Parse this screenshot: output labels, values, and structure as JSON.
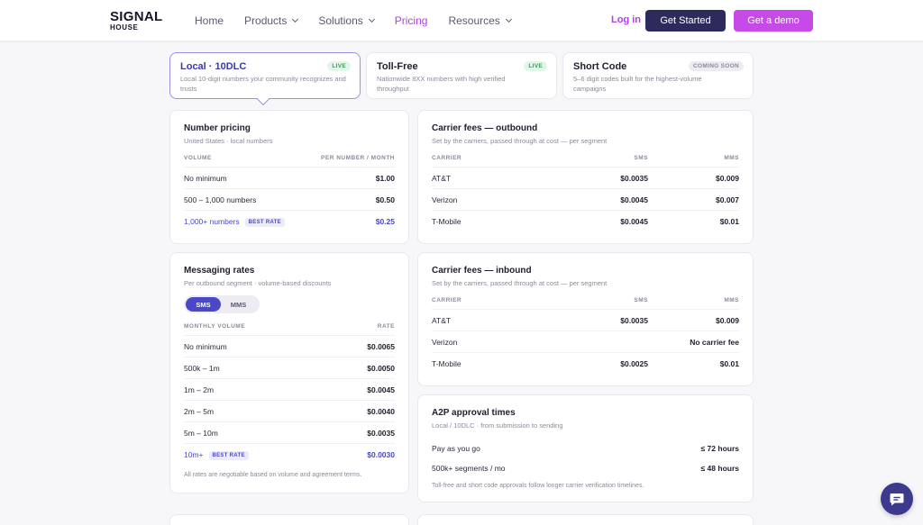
{
  "header": {
    "logo_line1": "SIGNAL",
    "logo_line2": "HOUSE",
    "nav": [
      {
        "label": "Home"
      },
      {
        "label": "Products"
      },
      {
        "label": "Solutions"
      },
      {
        "label": "Pricing"
      },
      {
        "label": "Resources"
      }
    ],
    "login": "Log in",
    "get_started": "Get Started",
    "get_demo": "Get a demo"
  },
  "tabs": [
    {
      "title": "Local · 10DLC",
      "desc": "Local 10-digit numbers your community recognizes and trusts",
      "badge": "LIVE"
    },
    {
      "title": "Toll-Free",
      "desc": "Nationwide 8XX numbers with high verified throughput",
      "badge": "LIVE"
    },
    {
      "title": "Short Code",
      "desc": "5–6 digit codes built for the highest-volume campaigns",
      "badge": "COMING SOON"
    }
  ],
  "number_pricing": {
    "title": "Number pricing",
    "subtitle": "United States · local numbers",
    "col1": "VOLUME",
    "col2": "PER NUMBER / MONTH",
    "rows": [
      {
        "label": "No minimum",
        "value": "$1.00"
      },
      {
        "label": "500 – 1,000 numbers",
        "value": "$0.50"
      },
      {
        "label": "1,000+ numbers",
        "value": "$0.25",
        "tag": "BEST RATE"
      }
    ]
  },
  "outbound": {
    "title": "Carrier fees — outbound",
    "subtitle": "Set by the carriers, passed through at cost — per segment",
    "col1": "CARRIER",
    "col2": "SMS",
    "col3": "MMS",
    "rows": [
      {
        "carrier": "AT&T",
        "sms": "$0.0035",
        "mms": "$0.009"
      },
      {
        "carrier": "Verizon",
        "sms": "$0.0045",
        "mms": "$0.007"
      },
      {
        "carrier": "T-Mobile",
        "sms": "$0.0045",
        "mms": "$0.01"
      }
    ]
  },
  "messaging": {
    "title": "Messaging rates",
    "subtitle": "Per outbound segment · volume-based discounts",
    "toggle_sms": "SMS",
    "toggle_mms": "MMS",
    "col1": "MONTHLY VOLUME",
    "col2": "RATE",
    "rows": [
      {
        "label": "No minimum",
        "value": "$0.0065"
      },
      {
        "label": "500k – 1m",
        "value": "$0.0050"
      },
      {
        "label": "1m – 2m",
        "value": "$0.0045"
      },
      {
        "label": "2m – 5m",
        "value": "$0.0040"
      },
      {
        "label": "5m – 10m",
        "value": "$0.0035"
      },
      {
        "label": "10m+",
        "value": "$0.0030",
        "tag": "BEST RATE"
      }
    ],
    "note": "All rates are negotiable based on volume and agreement terms."
  },
  "inbound": {
    "title": "Carrier fees — inbound",
    "subtitle": "Set by the carriers, passed through at cost — per segment",
    "col1": "CARRIER",
    "col2": "SMS",
    "col3": "MMS",
    "rows": [
      {
        "carrier": "AT&T",
        "sms": "$0.0035",
        "mms": "$0.009"
      },
      {
        "carrier": "Verizon",
        "combined": "No carrier fee"
      },
      {
        "carrier": "T-Mobile",
        "sms": "$0.0025",
        "mms": "$0.01"
      }
    ]
  },
  "a2p": {
    "title": "A2P approval times",
    "subtitle": "Local / 10DLC · from submission to sending",
    "rows": [
      {
        "label": "Pay as you go",
        "value": "≤ 72 hours"
      },
      {
        "label": "500k+ segments / mo",
        "value": "≤ 48 hours"
      }
    ],
    "note": "Toll-free and short code approvals follow longer carrier verification timelines."
  },
  "icons": {
    "chat": "chat-bubble-icon",
    "chevron": "chevron-down-icon"
  },
  "colors": {
    "accent": "#c54ae8",
    "primary": "#2d2b5c",
    "best": "#4a48c8"
  }
}
